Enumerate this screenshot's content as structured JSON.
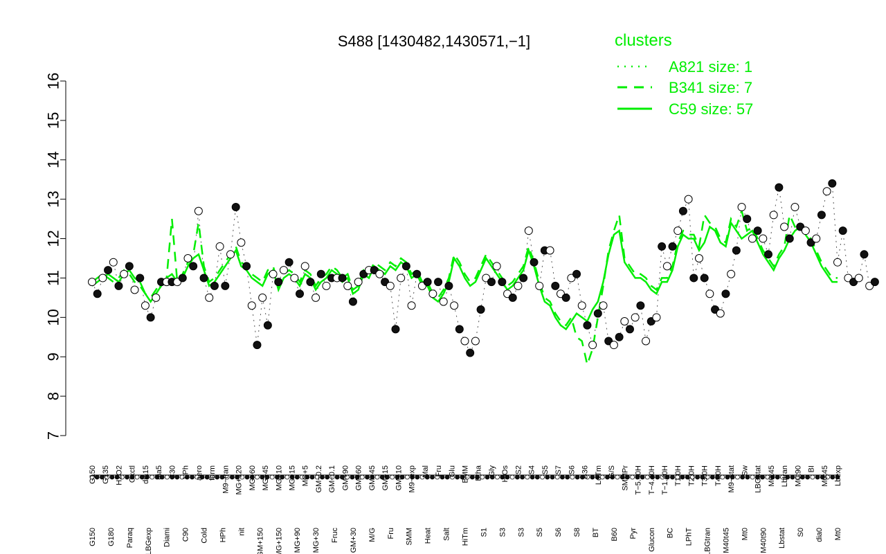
{
  "chart_data": {
    "type": "line",
    "title": "S488 [1430482,1430571,−1]",
    "xlabel": "",
    "ylabel": "",
    "ylim": [
      7,
      16
    ],
    "yticks": [
      7,
      8,
      9,
      10,
      11,
      12,
      13,
      14,
      15,
      16
    ],
    "grid": false,
    "legend": {
      "title": "clusters",
      "placement": "top-right",
      "entries": [
        {
          "label": "A821 size: 1",
          "style": "dotted"
        },
        {
          "label": "B341 size: 7",
          "style": "dashed"
        },
        {
          "label": "C59 size: 57",
          "style": "solid"
        }
      ]
    },
    "line_color": "#00ee00",
    "x_labels_top": [
      "G150",
      "G135",
      "H2O2",
      "Oxctl",
      "dia15",
      "dia5",
      "C30",
      "LPh",
      "aero",
      "ferm",
      "M9−tran",
      "MG+120",
      "MG+60",
      "MG+45",
      "MG+10",
      "MG+15",
      "MG+5",
      "GM−0.2",
      "GM−0.1",
      "GM+90",
      "GM+60",
      "GM+45",
      "GM+15",
      "GM+10",
      "M9−exp",
      "Mal",
      "Fru",
      "Glu",
      "BMM",
      "Etha",
      "Gly",
      "HiOs",
      "S2",
      "S4",
      "S5",
      "S7",
      "S6",
      "B36",
      "LoTm",
      "G/S",
      "SMMPr",
      "T−5.40H",
      "T−4.40H",
      "T−1.40H",
      "T1.0H",
      "T2.0H",
      "T3.0H",
      "T4.0H",
      "M9−stat",
      "Sw",
      "LBGstat",
      "M0t45",
      "Lbtran",
      "M0t90",
      "BI",
      "M0t45",
      "Lbexp"
    ],
    "x_labels_bottom": [
      "G150",
      "G180",
      "Paraq",
      "LBGexp",
      "Diami",
      "C90",
      "Cold",
      "HPh",
      "nit",
      "GM+150",
      "MG+150",
      "MG+90",
      "MG+30",
      "Fruc",
      "GM+30",
      "M/G",
      "Fru",
      "SMM",
      "Heat",
      "Salt",
      "HiTm",
      "S1",
      "S3",
      "S3",
      "S5",
      "S6",
      "S8",
      "BT",
      "B60",
      "Pyr",
      "Glucon",
      "BC",
      "LPhT",
      "LBGtran",
      "M40t45",
      "Mt0",
      "M40t90",
      "Lbstat",
      "S0",
      "dia0",
      "Mt0"
    ],
    "series": [
      {
        "name": "C59 size: 57",
        "style": "solid",
        "values": [
          10.8,
          10.9,
          11.0,
          11.1,
          11.0,
          10.9,
          11.1,
          11.2,
          11.0,
          10.9,
          10.6,
          10.4,
          10.6,
          10.8,
          11.0,
          11.1,
          10.9,
          11.0,
          11.3,
          11.5,
          11.6,
          11.2,
          10.8,
          10.9,
          11.1,
          11.3,
          11.5,
          11.7,
          11.3,
          11.2,
          11.0,
          10.9,
          10.8,
          11.1,
          11.2,
          10.7,
          11.0,
          11.1,
          11.0,
          10.8,
          11.1,
          11.0,
          10.7,
          10.9,
          11.0,
          11.2,
          11.1,
          10.9,
          11.0,
          10.6,
          10.7,
          11.1,
          11.0,
          11.3,
          11.2,
          11.1,
          11.3,
          11.2,
          11.4,
          11.3,
          11.0,
          11.1,
          10.8,
          10.8,
          10.5,
          10.4,
          10.6,
          10.9,
          11.5,
          11.3,
          11.0,
          10.8,
          10.9,
          11.2,
          11.5,
          11.3,
          11.1,
          10.9,
          10.7,
          10.8,
          11.0,
          11.2,
          11.7,
          11.3,
          10.8,
          10.4,
          10.3,
          10.0,
          9.8,
          9.7,
          9.9,
          10.1,
          10.0,
          9.9,
          10.2,
          10.4,
          10.9,
          11.6,
          12.1,
          12.2,
          11.4,
          11.2,
          11.0,
          11.0,
          10.9,
          10.7,
          10.6,
          10.9,
          10.9,
          11.2,
          11.8,
          12.1,
          12.0,
          12.0,
          11.7,
          11.9,
          12.3,
          12.2,
          11.9,
          11.8,
          12.4,
          12.2,
          12.0,
          12.1,
          12.2,
          11.9,
          11.6,
          11.4,
          11.2,
          11.5,
          11.7,
          12.0,
          12.2,
          12.3,
          12.1,
          11.9,
          11.6,
          11.3,
          11.1,
          10.9,
          10.9
        ]
      },
      {
        "name": "B341 size: 7",
        "style": "dashed",
        "values": [
          10.9,
          11.0,
          11.1,
          11.0,
          10.9,
          11.0,
          11.2,
          11.1,
          10.9,
          10.8,
          10.6,
          10.5,
          10.7,
          10.9,
          11.0,
          12.5,
          10.9,
          11.1,
          11.4,
          11.6,
          12.4,
          11.3,
          10.9,
          11.0,
          11.2,
          11.4,
          11.6,
          11.8,
          11.4,
          11.3,
          11.1,
          11.0,
          10.9,
          11.2,
          11.3,
          10.8,
          11.1,
          11.2,
          11.1,
          10.9,
          11.2,
          11.1,
          10.8,
          11.0,
          11.1,
          11.3,
          11.2,
          11.0,
          11.1,
          10.7,
          10.8,
          11.2,
          11.1,
          11.4,
          11.3,
          11.2,
          11.4,
          11.3,
          11.5,
          11.4,
          11.1,
          11.2,
          10.9,
          10.9,
          10.6,
          10.5,
          10.7,
          11.0,
          11.6,
          11.4,
          11.1,
          10.9,
          11.0,
          11.3,
          11.6,
          11.4,
          11.2,
          11.0,
          10.8,
          10.9,
          11.1,
          11.3,
          11.8,
          11.4,
          10.9,
          10.5,
          10.4,
          10.1,
          9.9,
          9.8,
          10.0,
          9.5,
          9.4,
          8.8,
          9.2,
          10.0,
          10.8,
          11.7,
          12.2,
          12.6,
          11.5,
          11.3,
          11.1,
          11.1,
          11.0,
          10.8,
          10.7,
          11.0,
          11.0,
          11.3,
          11.9,
          12.2,
          12.1,
          12.1,
          11.8,
          12.6,
          12.4,
          12.3,
          12.0,
          11.9,
          12.5,
          12.3,
          12.7,
          12.2,
          12.3,
          12.0,
          11.7,
          11.5,
          11.3,
          11.6,
          11.8,
          12.6,
          12.3,
          12.4,
          12.2,
          12.0,
          11.7,
          11.4,
          11.2,
          11.0,
          11.0
        ]
      },
      {
        "name": "A821 size: 1",
        "style": "dotted",
        "values": [
          10.9,
          10.6,
          11.0,
          11.2,
          11.4,
          10.8,
          11.1,
          11.3,
          10.7,
          11.0,
          10.3,
          10.0,
          10.5,
          10.9,
          10.9,
          10.9,
          10.9,
          11.0,
          11.5,
          11.3,
          12.7,
          11.0,
          10.5,
          10.8,
          11.8,
          10.8,
          11.6,
          12.8,
          11.9,
          11.3,
          10.3,
          9.3,
          10.5,
          9.8,
          11.1,
          10.9,
          11.2,
          11.4,
          11.0,
          10.6,
          11.3,
          10.9,
          10.5,
          11.1,
          10.8,
          11.0,
          11.0,
          11.0,
          10.8,
          10.4,
          10.9,
          11.1,
          11.2,
          11.2,
          11.1,
          10.9,
          10.8,
          9.7,
          11.0,
          11.3,
          10.3,
          11.1,
          10.8,
          10.9,
          10.6,
          10.9,
          10.4,
          10.8,
          10.3,
          9.7,
          9.4,
          9.1,
          9.4,
          10.2,
          11.0,
          10.9,
          11.3,
          10.9,
          10.6,
          10.5,
          10.8,
          11.0,
          12.2,
          11.4,
          10.8,
          11.7,
          11.7,
          10.8,
          10.6,
          10.5,
          11.0,
          11.1,
          10.3,
          9.8,
          9.3,
          10.1,
          10.3,
          9.4,
          9.3,
          9.5,
          9.9,
          9.7,
          10.0,
          10.3,
          9.4,
          9.9,
          10.0,
          11.8,
          11.3,
          11.8,
          12.2,
          12.7,
          13.0,
          11.0,
          11.5,
          11.0,
          10.6,
          10.2,
          10.1,
          10.6,
          11.1,
          11.7,
          12.8,
          12.5,
          12.0,
          12.2,
          12.0,
          11.6,
          12.6,
          13.3,
          12.3,
          12.0,
          12.8,
          12.3,
          12.2,
          11.9,
          12.0,
          12.6,
          13.2,
          13.4,
          11.4,
          12.2,
          11.0,
          10.9,
          11.0,
          11.6,
          10.8,
          10.9
        ]
      }
    ]
  }
}
